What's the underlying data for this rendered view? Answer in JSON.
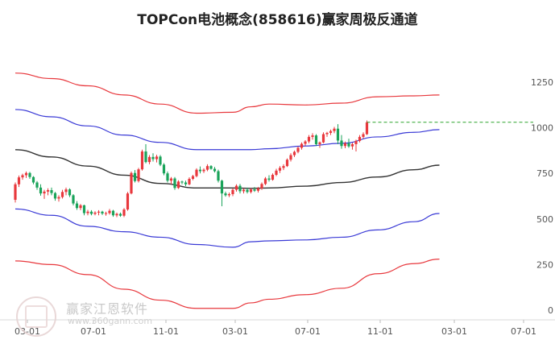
{
  "title": "TOPCon电池概念(858616)赢家周极反通道",
  "watermark": {
    "text": "赢家江恩软件",
    "url": "www.360gann.com"
  },
  "colors": {
    "up": "#e8383d",
    "down": "#1aa35a",
    "outer": "#e8383d",
    "mid": "#3a3ad6",
    "center": "#333333",
    "lastPrice": "#2aa32a"
  },
  "chart_data": {
    "type": "candlestick",
    "title": "TOPCon电池概念(858616)赢家周极反通道",
    "x_ticks": [
      "03-01",
      "07-01",
      "11-01",
      "03-01",
      "07-01",
      "11-01",
      "03-01",
      "07-01"
    ],
    "y_ticks": [
      0,
      250,
      500,
      750,
      1000,
      1250
    ],
    "ylim": [
      0,
      1310
    ],
    "grid": false,
    "last_price": 1030,
    "candles_ohlc": [
      [
        605,
        700,
        590,
        690
      ],
      [
        690,
        738,
        675,
        728
      ],
      [
        728,
        748,
        715,
        740
      ],
      [
        740,
        760,
        725,
        752
      ],
      [
        752,
        758,
        720,
        730
      ],
      [
        730,
        735,
        690,
        700
      ],
      [
        700,
        708,
        660,
        672
      ],
      [
        672,
        690,
        628,
        640
      ],
      [
        640,
        660,
        610,
        650
      ],
      [
        650,
        668,
        630,
        658
      ],
      [
        658,
        672,
        630,
        642
      ],
      [
        642,
        648,
        600,
        612
      ],
      [
        612,
        630,
        595,
        620
      ],
      [
        620,
        660,
        612,
        648
      ],
      [
        648,
        672,
        630,
        662
      ],
      [
        662,
        668,
        620,
        630
      ],
      [
        630,
        636,
        575,
        585
      ],
      [
        585,
        598,
        550,
        560
      ],
      [
        560,
        582,
        548,
        575
      ],
      [
        575,
        578,
        520,
        532
      ],
      [
        532,
        550,
        520,
        540
      ],
      [
        540,
        548,
        520,
        528
      ],
      [
        528,
        542,
        520,
        535
      ],
      [
        535,
        548,
        520,
        540
      ],
      [
        540,
        545,
        522,
        530
      ],
      [
        530,
        540,
        518,
        532
      ],
      [
        532,
        555,
        524,
        545
      ],
      [
        545,
        550,
        512,
        520
      ],
      [
        520,
        535,
        510,
        528
      ],
      [
        528,
        535,
        512,
        518
      ],
      [
        518,
        560,
        510,
        552
      ],
      [
        552,
        648,
        545,
        640
      ],
      [
        640,
        760,
        635,
        752
      ],
      [
        752,
        768,
        700,
        708
      ],
      [
        708,
        780,
        700,
        772
      ],
      [
        772,
        880,
        765,
        870
      ],
      [
        870,
        910,
        805,
        812
      ],
      [
        812,
        850,
        800,
        840
      ],
      [
        840,
        860,
        815,
        828
      ],
      [
        828,
        852,
        810,
        842
      ],
      [
        842,
        850,
        790,
        798
      ],
      [
        798,
        806,
        740,
        750
      ],
      [
        750,
        760,
        700,
        710
      ],
      [
        710,
        730,
        690,
        722
      ],
      [
        722,
        730,
        660,
        670
      ],
      [
        670,
        712,
        665,
        705
      ],
      [
        705,
        710,
        690,
        700
      ],
      [
        700,
        710,
        680,
        690
      ],
      [
        690,
        728,
        685,
        720
      ],
      [
        720,
        742,
        712,
        735
      ],
      [
        735,
        778,
        728,
        770
      ],
      [
        770,
        788,
        750,
        762
      ],
      [
        762,
        778,
        752,
        770
      ],
      [
        770,
        800,
        762,
        790
      ],
      [
        790,
        795,
        770,
        775
      ],
      [
        775,
        785,
        755,
        762
      ],
      [
        762,
        770,
        700,
        710
      ],
      [
        710,
        715,
        570,
        640
      ],
      [
        640,
        650,
        622,
        630
      ],
      [
        630,
        645,
        620,
        636
      ],
      [
        636,
        668,
        625,
        660
      ],
      [
        660,
        690,
        650,
        682
      ],
      [
        682,
        692,
        640,
        652
      ],
      [
        652,
        668,
        640,
        660
      ],
      [
        660,
        672,
        640,
        648
      ],
      [
        648,
        668,
        640,
        662
      ],
      [
        662,
        675,
        648,
        655
      ],
      [
        655,
        675,
        645,
        668
      ],
      [
        668,
        700,
        660,
        692
      ],
      [
        692,
        730,
        685,
        722
      ],
      [
        722,
        740,
        705,
        715
      ],
      [
        715,
        750,
        710,
        742
      ],
      [
        742,
        775,
        735,
        765
      ],
      [
        765,
        790,
        752,
        780
      ],
      [
        780,
        800,
        768,
        790
      ],
      [
        790,
        832,
        785,
        825
      ],
      [
        825,
        860,
        815,
        850
      ],
      [
        850,
        875,
        840,
        868
      ],
      [
        868,
        898,
        860,
        890
      ],
      [
        890,
        920,
        880,
        912
      ],
      [
        912,
        932,
        900,
        925
      ],
      [
        925,
        960,
        915,
        950
      ],
      [
        950,
        970,
        935,
        958
      ],
      [
        958,
        965,
        900,
        910
      ],
      [
        910,
        925,
        890,
        920
      ],
      [
        920,
        975,
        915,
        965
      ],
      [
        965,
        978,
        950,
        972
      ],
      [
        972,
        990,
        960,
        982
      ],
      [
        982,
        1005,
        970,
        995
      ],
      [
        995,
        1020,
        910,
        930
      ],
      [
        930,
        960,
        885,
        900
      ],
      [
        900,
        925,
        888,
        915
      ],
      [
        915,
        940,
        890,
        898
      ],
      [
        898,
        918,
        880,
        910
      ],
      [
        910,
        935,
        870,
        928
      ],
      [
        928,
        960,
        920,
        950
      ],
      [
        950,
        975,
        940,
        965
      ],
      [
        965,
        1040,
        960,
        1030
      ]
    ],
    "channels": {
      "outer_upper": {
        "x": [
          0,
          10,
          20,
          30,
          40,
          50,
          60,
          65,
          70,
          80,
          90,
          100,
          110,
          117
        ],
        "y": [
          1300,
          1270,
          1230,
          1180,
          1130,
          1080,
          1085,
          1115,
          1130,
          1125,
          1135,
          1170,
          1175,
          1180
        ]
      },
      "mid_upper": {
        "x": [
          0,
          10,
          20,
          30,
          40,
          50,
          60,
          65,
          70,
          80,
          90,
          100,
          110,
          117
        ],
        "y": [
          1100,
          1060,
          1010,
          960,
          920,
          880,
          880,
          880,
          885,
          900,
          915,
          950,
          975,
          990
        ]
      },
      "center": {
        "x": [
          0,
          10,
          20,
          30,
          40,
          50,
          60,
          65,
          70,
          80,
          90,
          100,
          110,
          117
        ],
        "y": [
          880,
          840,
          790,
          740,
          695,
          670,
          670,
          668,
          670,
          680,
          700,
          730,
          770,
          795
        ]
      },
      "mid_lower": {
        "x": [
          0,
          10,
          20,
          30,
          40,
          50,
          60,
          65,
          70,
          80,
          90,
          100,
          110,
          117
        ],
        "y": [
          555,
          520,
          460,
          430,
          400,
          360,
          345,
          375,
          380,
          385,
          400,
          440,
          485,
          530
        ]
      },
      "outer_lower": {
        "x": [
          0,
          10,
          20,
          30,
          40,
          50,
          60,
          65,
          70,
          80,
          90,
          100,
          110,
          117
        ],
        "y": [
          270,
          250,
          195,
          115,
          55,
          10,
          10,
          40,
          60,
          85,
          120,
          200,
          255,
          280
        ]
      }
    }
  }
}
